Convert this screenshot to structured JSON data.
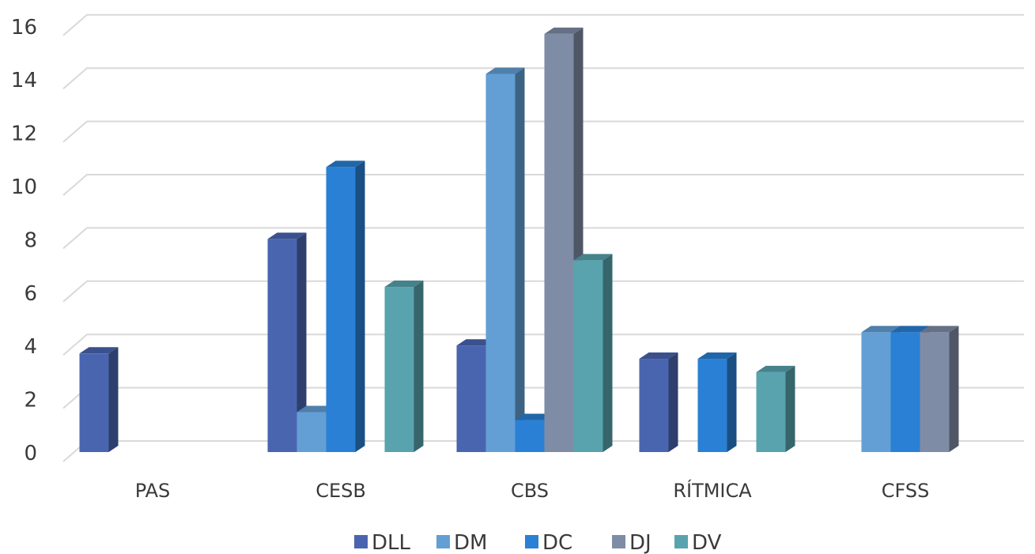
{
  "chart_data": {
    "type": "bar",
    "style": "3d-clustered-column",
    "categories": [
      "PAS",
      "CESB",
      "CBS",
      "RÍTMICA",
      "CFSS"
    ],
    "series": [
      {
        "name": "DLL",
        "color": "#4a65b0",
        "values": [
          3.7,
          8,
          4,
          3.5,
          null
        ]
      },
      {
        "name": "DM",
        "color": "#639fd4",
        "values": [
          null,
          1.5,
          14.2,
          null,
          4.5
        ]
      },
      {
        "name": "DC",
        "color": "#2a80d4",
        "values": [
          null,
          10.7,
          1.2,
          3.5,
          4.5
        ]
      },
      {
        "name": "DJ",
        "color": "#7f8ca6",
        "values": [
          null,
          null,
          15.7,
          null,
          4.5
        ]
      },
      {
        "name": "DV",
        "color": "#58a3ae",
        "values": [
          null,
          6.2,
          7.2,
          3,
          null
        ]
      }
    ],
    "yticks": [
      0,
      2,
      4,
      6,
      8,
      10,
      12,
      14,
      16
    ],
    "ylim": [
      0,
      16
    ],
    "grid": true,
    "legend_position": "bottom",
    "title": "",
    "xlabel": "",
    "ylabel": ""
  }
}
